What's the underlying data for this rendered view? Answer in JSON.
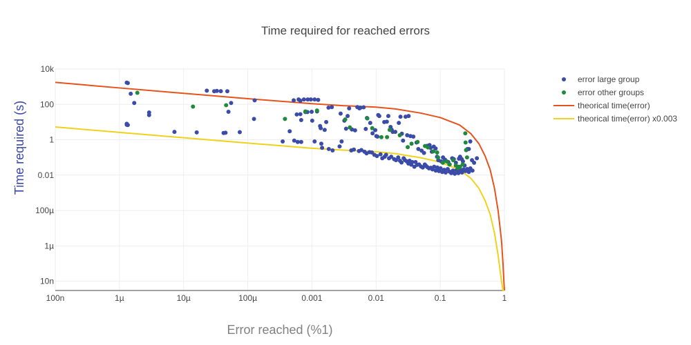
{
  "chart_data": {
    "type": "scatter",
    "title": "Time required for reached errors",
    "xlabel": "Error reached (%1)",
    "ylabel": "Time required (s)",
    "xscale": "log",
    "yscale": "log",
    "xlim": [
      1e-07,
      1
    ],
    "ylim": [
      3e-09,
      10000
    ],
    "grid": true,
    "legend_position": "top-right",
    "x_ticks": [
      {
        "value": 1e-07,
        "label": "100n"
      },
      {
        "value": 1e-06,
        "label": "1µ"
      },
      {
        "value": 1e-05,
        "label": "10µ"
      },
      {
        "value": 0.0001,
        "label": "100µ"
      },
      {
        "value": 0.001,
        "label": "0.001"
      },
      {
        "value": 0.01,
        "label": "0.01"
      },
      {
        "value": 0.1,
        "label": "0.1"
      },
      {
        "value": 1,
        "label": "1"
      }
    ],
    "y_ticks": [
      {
        "value": 10000,
        "label": "10k"
      },
      {
        "value": 100,
        "label": "100"
      },
      {
        "value": 1,
        "label": "1"
      },
      {
        "value": 0.01,
        "label": "0.01"
      },
      {
        "value": 0.0001,
        "label": "100µ"
      },
      {
        "value": 1e-06,
        "label": "1µ"
      },
      {
        "value": 1e-08,
        "label": "10n"
      }
    ],
    "series": [
      {
        "name": "error large group",
        "mode": "markers",
        "color": "#3b4ba8",
        "points": [
          [
            1.3e-06,
            1700
          ],
          [
            1.35e-06,
            1600
          ],
          [
            1.5e-06,
            400
          ],
          [
            1.7e-06,
            120
          ],
          [
            1.3e-06,
            8
          ],
          [
            1.3e-06,
            7
          ],
          [
            1.35e-06,
            6.8
          ],
          [
            2.9e-06,
            35
          ],
          [
            2.9e-06,
            25
          ],
          [
            7.2e-06,
            2.8
          ],
          [
            1.6e-05,
            2.6
          ],
          [
            2.3e-05,
            600
          ],
          [
            3e-05,
            550
          ],
          [
            3.3e-05,
            580
          ],
          [
            3.8e-05,
            560
          ],
          [
            4.8e-05,
            550
          ],
          [
            4.2e-05,
            2.4
          ],
          [
            4.5e-05,
            2.5
          ],
          [
            5e-05,
            38
          ],
          [
            5.5e-05,
            120
          ],
          [
            7.5e-05,
            2.7
          ],
          [
            0.000128,
            170
          ],
          [
            0.000125,
            15
          ],
          [
            0.00035,
            0.8
          ],
          [
            0.00045,
            3
          ],
          [
            0.00052,
            170
          ],
          [
            0.00062,
            190
          ],
          [
            0.00066,
            160
          ],
          [
            0.00075,
            190
          ],
          [
            0.00086,
            190
          ],
          [
            0.00096,
            190
          ],
          [
            0.0011,
            190
          ],
          [
            0.00125,
            180
          ],
          [
            0.00058,
            27
          ],
          [
            0.00066,
            28
          ],
          [
            0.00068,
            13
          ],
          [
            0.00079,
            37
          ],
          [
            0.00085,
            37
          ],
          [
            0.00099,
            38
          ],
          [
            0.00101,
            12
          ],
          [
            0.0012,
            40
          ],
          [
            0.00134,
            6
          ],
          [
            0.00137,
            4.5
          ],
          [
            0.00158,
            3.6
          ],
          [
            0.00181,
            65
          ],
          [
            0.00204,
            70
          ],
          [
            0.00167,
            10
          ],
          [
            0.00068,
            0.75
          ],
          [
            0.0011,
            0.8
          ],
          [
            0.0014,
            0.6
          ],
          [
            0.00144,
            0.35
          ],
          [
            0.00183,
            0.3
          ],
          [
            0.0006,
            0.75
          ],
          [
            0.00053,
            0.9
          ],
          [
            0.0021,
            0.25
          ],
          [
            0.0027,
            0.42
          ],
          [
            0.0029,
            0.8
          ],
          [
            0.0028,
            30
          ],
          [
            0.0032,
            12
          ],
          [
            0.0034,
            4.2
          ],
          [
            0.0036,
            22
          ],
          [
            0.0038,
            60
          ],
          [
            0.0042,
            3.8
          ],
          [
            0.0047,
            3.4
          ],
          [
            0.0051,
            70
          ],
          [
            0.0055,
            60
          ],
          [
            0.0057,
            65
          ],
          [
            0.0064,
            68
          ],
          [
            0.0069,
            4.1
          ],
          [
            0.0072,
            17
          ],
          [
            0.0081,
            9
          ],
          [
            0.0088,
            2.3
          ],
          [
            0.0097,
            3.5
          ],
          [
            0.0101,
            1.6
          ],
          [
            0.0105,
            1.5
          ],
          [
            0.0112,
            22
          ],
          [
            0.0108,
            25
          ],
          [
            0.0134,
            10
          ],
          [
            0.0147,
            10.5
          ],
          [
            0.0155,
            22
          ],
          [
            0.0168,
            5.3
          ],
          [
            0.0175,
            3.7
          ],
          [
            0.0182,
            2.8
          ],
          [
            0.0199,
            2.8
          ],
          [
            0.0226,
            9
          ],
          [
            0.024,
            20
          ],
          [
            0.0252,
            2.2
          ],
          [
            0.0263,
            0.9
          ],
          [
            0.0288,
            20
          ],
          [
            0.0305,
            1.8
          ],
          [
            0.0321,
            22
          ],
          [
            0.0343,
            1.6
          ],
          [
            0.0381,
            1.5
          ],
          [
            0.0427,
            0.7
          ],
          [
            0.0455,
            0.3
          ],
          [
            0.0512,
            0.24
          ],
          [
            0.0558,
            0.18
          ],
          [
            0.0624,
            0.45
          ],
          [
            0.0681,
            0.5
          ],
          [
            0.0705,
            0.35
          ],
          [
            0.0739,
            0.21
          ],
          [
            0.0792,
            0.41
          ],
          [
            0.0846,
            0.32
          ],
          [
            0.0891,
            0.11
          ],
          [
            0.0931,
            0.07
          ],
          [
            0.1035,
            0.06
          ],
          [
            0.1104,
            0.1
          ],
          [
            0.1185,
            0.075
          ],
          [
            0.1262,
            0.06
          ],
          [
            0.1334,
            0.055
          ],
          [
            0.1401,
            0.04
          ],
          [
            0.1532,
            0.09
          ],
          [
            0.1626,
            0.08
          ],
          [
            0.1753,
            0.05
          ],
          [
            0.1884,
            0.03
          ],
          [
            0.1955,
            0.085
          ],
          [
            0.2037,
            0.11
          ],
          [
            0.2161,
            0.08
          ],
          [
            0.2257,
            0.06
          ],
          [
            0.2394,
            0.035
          ],
          [
            0.2549,
            0.26
          ],
          [
            0.2648,
            0.3
          ],
          [
            0.2787,
            0.3
          ],
          [
            0.2936,
            0.8
          ],
          [
            0.3124,
            0.07
          ],
          [
            0.3367,
            0.05
          ],
          [
            0.3722,
            0.09
          ],
          [
            0.0041,
            0.25
          ],
          [
            0.0045,
            0.28
          ],
          [
            0.0054,
            0.23
          ],
          [
            0.0059,
            0.26
          ],
          [
            0.0066,
            0.21
          ],
          [
            0.0071,
            0.17
          ],
          [
            0.0079,
            0.2
          ],
          [
            0.0086,
            0.19
          ],
          [
            0.0094,
            0.14
          ],
          [
            0.0103,
            0.12
          ],
          [
            0.0117,
            0.15
          ],
          [
            0.0125,
            0.09
          ],
          [
            0.0136,
            0.11
          ],
          [
            0.0143,
            0.14
          ],
          [
            0.0159,
            0.09
          ],
          [
            0.0172,
            0.11
          ],
          [
            0.0191,
            0.08
          ],
          [
            0.0204,
            0.07
          ],
          [
            0.0221,
            0.1
          ],
          [
            0.0236,
            0.065
          ],
          [
            0.0249,
            0.052
          ],
          [
            0.0269,
            0.09
          ],
          [
            0.0282,
            0.07
          ],
          [
            0.0301,
            0.06
          ],
          [
            0.0319,
            0.045
          ],
          [
            0.0332,
            0.065
          ],
          [
            0.0353,
            0.039
          ],
          [
            0.0367,
            0.055
          ],
          [
            0.0395,
            0.03
          ],
          [
            0.0412,
            0.055
          ],
          [
            0.0436,
            0.038
          ],
          [
            0.0467,
            0.04
          ],
          [
            0.0501,
            0.031
          ],
          [
            0.0533,
            0.027
          ],
          [
            0.0575,
            0.04
          ],
          [
            0.0601,
            0.033
          ],
          [
            0.0633,
            0.028
          ],
          [
            0.0669,
            0.024
          ],
          [
            0.0712,
            0.026
          ],
          [
            0.0756,
            0.021
          ],
          [
            0.0803,
            0.03
          ],
          [
            0.0852,
            0.018
          ],
          [
            0.0901,
            0.027
          ],
          [
            0.0955,
            0.017
          ],
          [
            0.1012,
            0.024
          ],
          [
            0.1075,
            0.015
          ],
          [
            0.1151,
            0.02
          ],
          [
            0.1213,
            0.014
          ],
          [
            0.1307,
            0.022
          ],
          [
            0.1388,
            0.016
          ],
          [
            0.1482,
            0.013
          ],
          [
            0.1578,
            0.018
          ],
          [
            0.1682,
            0.012
          ],
          [
            0.1791,
            0.019
          ],
          [
            0.1915,
            0.013
          ],
          [
            0.2044,
            0.02
          ],
          [
            0.2183,
            0.014
          ],
          [
            0.2309,
            0.021
          ],
          [
            0.2481,
            0.017
          ],
          [
            0.2623,
            0.022
          ],
          [
            0.2786,
            0.015
          ],
          [
            0.2943,
            0.024
          ],
          [
            0.3178,
            0.018
          ]
        ]
      },
      {
        "name": "error other groups",
        "mode": "markers",
        "color": "#1f8a3c",
        "points": [
          [
            1.9e-06,
            450
          ],
          [
            1.4e-05,
            75
          ],
          [
            4.6e-05,
            90
          ],
          [
            0.00038,
            15
          ],
          [
            0.00079,
            40
          ],
          [
            0.0012,
            45
          ],
          [
            0.0033,
            14
          ],
          [
            0.0039,
            5
          ],
          [
            0.0073,
            16
          ],
          [
            0.0087,
            4.5
          ],
          [
            0.0121,
            1.4
          ],
          [
            0.0148,
            1.4
          ],
          [
            0.0163,
            3.6
          ],
          [
            0.0234,
            1.8
          ],
          [
            0.0311,
            0.38
          ],
          [
            0.0357,
            0.6
          ],
          [
            0.0443,
            0.75
          ],
          [
            0.0578,
            0.44
          ],
          [
            0.0642,
            0.37
          ],
          [
            0.0781,
            0.22
          ],
          [
            0.0894,
            0.19
          ],
          [
            0.0923,
            0.1
          ],
          [
            0.1098,
            0.05
          ],
          [
            0.1254,
            0.06
          ],
          [
            0.1389,
            0.04
          ],
          [
            0.1587,
            0.07
          ],
          [
            0.1746,
            0.035
          ],
          [
            0.1893,
            0.025
          ],
          [
            0.2031,
            0.03
          ],
          [
            0.2235,
            0.04
          ],
          [
            0.2455,
            2.3
          ],
          [
            0.2478,
            0.7
          ],
          [
            0.2524,
            0.26
          ],
          [
            0.2613,
            0.1
          ]
        ]
      },
      {
        "name": "theorical time(error)",
        "mode": "line",
        "color": "#e6521a",
        "points": [
          [
            1e-07,
            1750
          ],
          [
            1e-06,
            850
          ],
          [
            1e-05,
            420
          ],
          [
            0.0001,
            210
          ],
          [
            0.001,
            110
          ],
          [
            0.003,
            85
          ],
          [
            0.01,
            70
          ],
          [
            0.02,
            55
          ],
          [
            0.05,
            32
          ],
          [
            0.1,
            18
          ],
          [
            0.2,
            6.8
          ],
          [
            0.3,
            2.2
          ],
          [
            0.4,
            0.6
          ],
          [
            0.5,
            0.12
          ],
          [
            0.6,
            0.02
          ],
          [
            0.7,
            0.0018
          ],
          [
            0.8,
            9e-05
          ],
          [
            0.9,
            2e-06
          ],
          [
            0.95,
            1e-07
          ],
          [
            0.98,
            1e-08
          ],
          [
            1,
            3e-09
          ]
        ]
      },
      {
        "name": "theorical time(error) x0.003",
        "mode": "line",
        "color": "#f0d21a",
        "points": [
          [
            1e-07,
            5.3
          ],
          [
            1e-06,
            2.6
          ],
          [
            1e-05,
            1.3
          ],
          [
            0.0001,
            0.65
          ],
          [
            0.001,
            0.33
          ],
          [
            0.003,
            0.26
          ],
          [
            0.01,
            0.21
          ],
          [
            0.02,
            0.165
          ],
          [
            0.05,
            0.096
          ],
          [
            0.1,
            0.054
          ],
          [
            0.2,
            0.02
          ],
          [
            0.3,
            0.0066
          ],
          [
            0.4,
            0.0018
          ],
          [
            0.5,
            0.00036
          ],
          [
            0.6,
            6e-05
          ],
          [
            0.7,
            5.4e-06
          ],
          [
            0.8,
            2.7e-07
          ],
          [
            0.9,
            1e-08
          ],
          [
            0.95,
            3e-09
          ],
          [
            1,
            3e-09
          ]
        ]
      }
    ]
  }
}
